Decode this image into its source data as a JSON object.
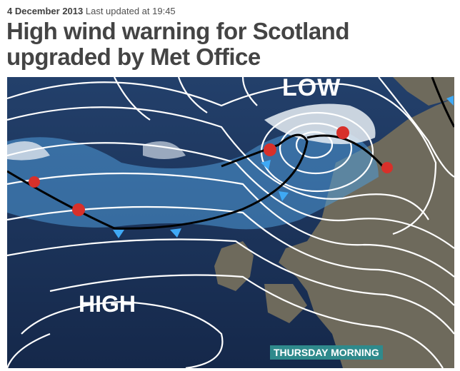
{
  "article": {
    "date": "4 December 2013",
    "updated": "Last updated at 19:45",
    "headline": "High wind warning for Scotland upgraded by Met Office"
  },
  "map": {
    "low_label": "LOW",
    "high_label": "HIGH",
    "caption": "THURSDAY MORNING",
    "colors": {
      "sea": "#1d3358",
      "land": "#6e6a5c",
      "rain": "#4f9ad8",
      "warm_front": "#d8302a",
      "cold_front": "#3fa9f5"
    }
  }
}
